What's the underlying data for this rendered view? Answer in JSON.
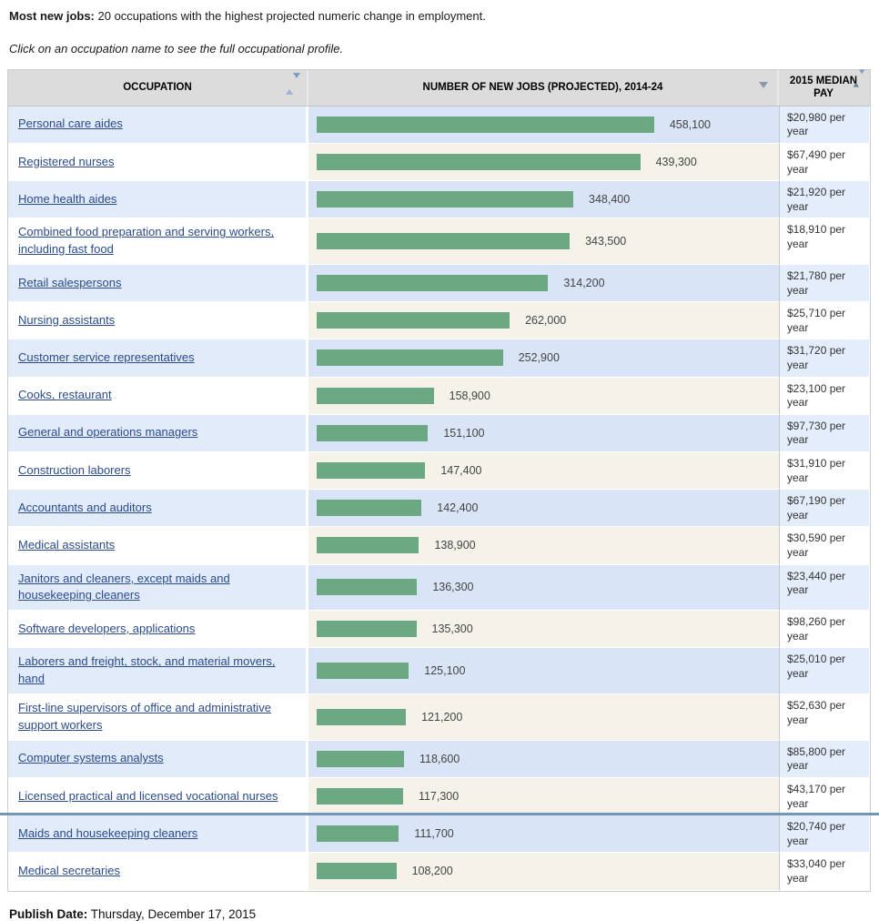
{
  "page": {
    "intro_bold": "Most new jobs:",
    "intro_rest": " 20 occupations with the highest projected numeric change in employment.",
    "instruction": "Click on an occupation name to see the full occupational profile.",
    "publish_label": "Publish Date:",
    "publish_value": " Thursday, December 17, 2015"
  },
  "table": {
    "headers": {
      "occupation": "OCCUPATION",
      "jobs": "NUMBER OF NEW JOBS (PROJECTED), 2014-24",
      "pay": "2015 MEDIAN PAY"
    },
    "icons": {
      "occupation_sort": "sort-up-down-icon",
      "jobs_sort": "sort-descending-icon",
      "pay_sort": "sort-up-down-icon"
    },
    "rows": [
      {
        "occupation": "Personal care aides",
        "value": 458100,
        "value_label": "458,100",
        "pay": "$20,980 per year"
      },
      {
        "occupation": "Registered nurses",
        "value": 439300,
        "value_label": "439,300",
        "pay": "$67,490 per year"
      },
      {
        "occupation": "Home health aides",
        "value": 348400,
        "value_label": "348,400",
        "pay": "$21,920 per year"
      },
      {
        "occupation": "Combined food preparation and serving workers, including fast food",
        "value": 343500,
        "value_label": "343,500",
        "pay": "$18,910 per year"
      },
      {
        "occupation": "Retail salespersons",
        "value": 314200,
        "value_label": "314,200",
        "pay": "$21,780 per year"
      },
      {
        "occupation": "Nursing assistants",
        "value": 262000,
        "value_label": "262,000",
        "pay": "$25,710 per year"
      },
      {
        "occupation": "Customer service representatives",
        "value": 252900,
        "value_label": "252,900",
        "pay": "$31,720 per year"
      },
      {
        "occupation": "Cooks, restaurant",
        "value": 158900,
        "value_label": "158,900",
        "pay": "$23,100 per year"
      },
      {
        "occupation": "General and operations managers",
        "value": 151100,
        "value_label": "151,100",
        "pay": "$97,730 per year"
      },
      {
        "occupation": "Construction laborers",
        "value": 147400,
        "value_label": "147,400",
        "pay": "$31,910 per year"
      },
      {
        "occupation": "Accountants and auditors",
        "value": 142400,
        "value_label": "142,400",
        "pay": "$67,190 per year"
      },
      {
        "occupation": "Medical assistants",
        "value": 138900,
        "value_label": "138,900",
        "pay": "$30,590 per year"
      },
      {
        "occupation": "Janitors and cleaners, except maids and housekeeping cleaners",
        "value": 136300,
        "value_label": "136,300",
        "pay": "$23,440 per year"
      },
      {
        "occupation": "Software developers, applications",
        "value": 135300,
        "value_label": "135,300",
        "pay": "$98,260 per year"
      },
      {
        "occupation": "Laborers and freight, stock, and material movers, hand",
        "value": 125100,
        "value_label": "125,100",
        "pay": "$25,010 per year"
      },
      {
        "occupation": "First-line supervisors of office and administrative support workers",
        "value": 121200,
        "value_label": "121,200",
        "pay": "$52,630 per year"
      },
      {
        "occupation": "Computer systems analysts",
        "value": 118600,
        "value_label": "118,600",
        "pay": "$85,800 per year"
      },
      {
        "occupation": "Licensed practical and licensed vocational nurses",
        "value": 117300,
        "value_label": "117,300",
        "pay": "$43,170 per year"
      },
      {
        "occupation": "Maids and housekeeping cleaners",
        "value": 111700,
        "value_label": "111,700",
        "pay": "$20,740 per year"
      },
      {
        "occupation": "Medical secretaries",
        "value": 108200,
        "value_label": "108,200",
        "pay": "$33,040 per year"
      }
    ]
  },
  "chart_data": {
    "type": "bar",
    "orientation": "horizontal",
    "title": "Most new jobs: 20 occupations with the highest projected numeric change in employment.",
    "xlabel": "Number of new jobs (projected), 2014-24",
    "ylabel": "Occupation",
    "categories": [
      "Personal care aides",
      "Registered nurses",
      "Home health aides",
      "Combined food preparation and serving workers, including fast food",
      "Retail salespersons",
      "Nursing assistants",
      "Customer service representatives",
      "Cooks, restaurant",
      "General and operations managers",
      "Construction laborers",
      "Accountants and auditors",
      "Medical assistants",
      "Janitors and cleaners, except maids and housekeeping cleaners",
      "Software developers, applications",
      "Laborers and freight, stock, and material movers, hand",
      "First-line supervisors of office and administrative support workers",
      "Computer systems analysts",
      "Licensed practical and licensed vocational nurses",
      "Maids and housekeeping cleaners",
      "Medical secretaries"
    ],
    "values": [
      458100,
      439300,
      348400,
      343500,
      314200,
      262000,
      252900,
      158900,
      151100,
      147400,
      142400,
      138900,
      136300,
      135300,
      125100,
      121200,
      118600,
      117300,
      111700,
      108200
    ],
    "data_labels": [
      "458,100",
      "439,300",
      "348,400",
      "343,500",
      "314,200",
      "262,000",
      "252,900",
      "158,900",
      "151,100",
      "147,400",
      "142,400",
      "138,900",
      "136,300",
      "135,300",
      "125,100",
      "121,200",
      "118,600",
      "117,300",
      "111,700",
      "108,200"
    ],
    "median_pay_2015": [
      "$20,980 per year",
      "$67,490 per year",
      "$21,920 per year",
      "$18,910 per year",
      "$21,780 per year",
      "$25,710 per year",
      "$31,720 per year",
      "$23,100 per year",
      "$97,730 per year",
      "$31,910 per year",
      "$67,190 per year",
      "$30,590 per year",
      "$23,440 per year",
      "$98,260 per year",
      "$25,010 per year",
      "$52,630 per year",
      "$85,800 per year",
      "$43,170 per year",
      "$20,740 per year",
      "$33,040 per year"
    ],
    "max_value": 458100,
    "xlim": [
      0,
      458100
    ],
    "grid": false,
    "legend": false,
    "bar_color": "#6ca983",
    "sorted": "descending by number of new jobs"
  },
  "colors": {
    "bar_green": "#6ca983",
    "row_blue": "#e1ebfa",
    "row_bar_blue": "#d9e5f6",
    "row_bar_cream": "#f4f2e9",
    "header_gray": "#dcdcdc",
    "link_blue": "#2b4b8c",
    "bottom_rule_blue": "#7296ba"
  }
}
